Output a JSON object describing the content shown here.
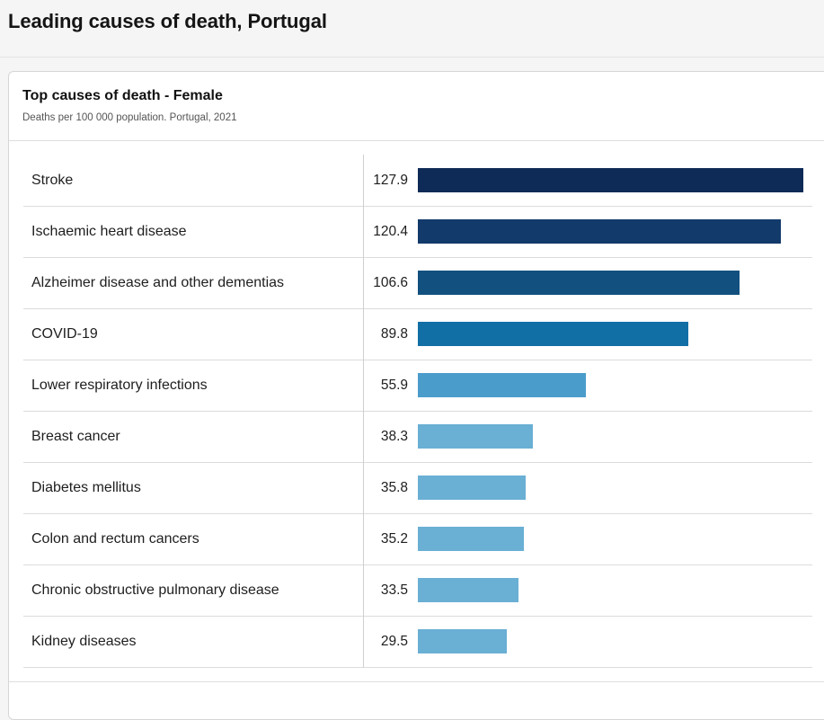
{
  "page": {
    "title": "Leading causes of death, Portugal"
  },
  "card": {
    "title": "Top causes of death - Female",
    "subtitle": "Deaths per 100 000 population. Portugal, 2021"
  },
  "chart_data": {
    "type": "bar",
    "orientation": "horizontal",
    "title": "Top causes of death - Female",
    "subtitle": "Deaths per 100 000 population. Portugal, 2021",
    "xlabel": "",
    "ylabel": "",
    "xlim": [
      0,
      127.9
    ],
    "grid": false,
    "categories": [
      "Stroke",
      "Ischaemic heart disease",
      "Alzheimer disease and other dementias",
      "COVID-19",
      "Lower respiratory infections",
      "Breast cancer",
      "Diabetes mellitus",
      "Colon and rectum cancers",
      "Chronic obstructive pulmonary disease",
      "Kidney diseases"
    ],
    "values": [
      127.9,
      120.4,
      106.6,
      89.8,
      55.9,
      38.3,
      35.8,
      35.2,
      33.5,
      29.5
    ],
    "value_labels": [
      "127.9",
      "120.4",
      "106.6",
      "89.8",
      "55.9",
      "38.3",
      "35.8",
      "35.2",
      "33.5",
      "29.5"
    ],
    "bar_colors": [
      "#0e2a56",
      "#123a6b",
      "#12507f",
      "#126fa6",
      "#4a9ccb",
      "#6aafd4",
      "#6aafd4",
      "#6aafd4",
      "#6aafd4",
      "#6aafd4"
    ]
  }
}
